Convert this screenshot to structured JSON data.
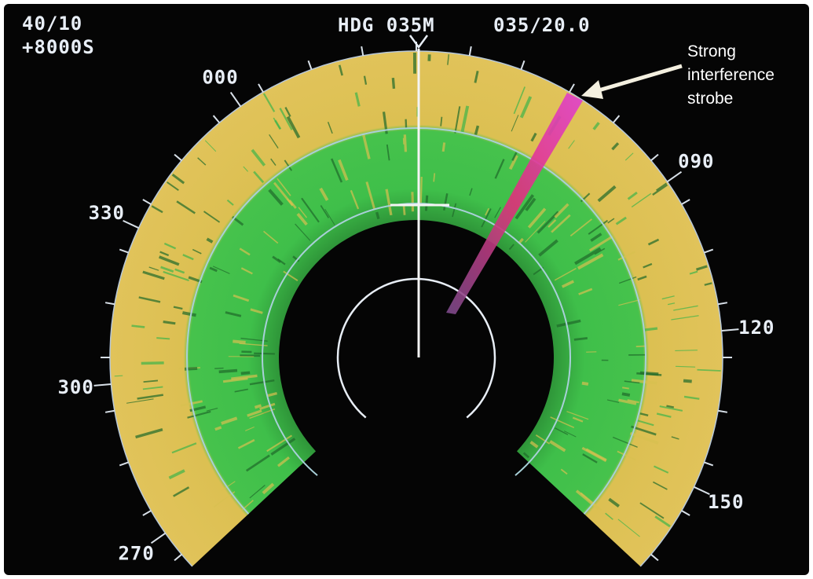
{
  "display": {
    "range": "40/10",
    "offset": "+8000S",
    "heading": "HDG 035M",
    "cursor": "035/20.0",
    "bearings": [
      "000",
      "090",
      "330",
      "120",
      "300",
      "150",
      "270"
    ]
  },
  "annotation": {
    "lines": [
      "Strong",
      "interference",
      "strobe"
    ]
  }
}
